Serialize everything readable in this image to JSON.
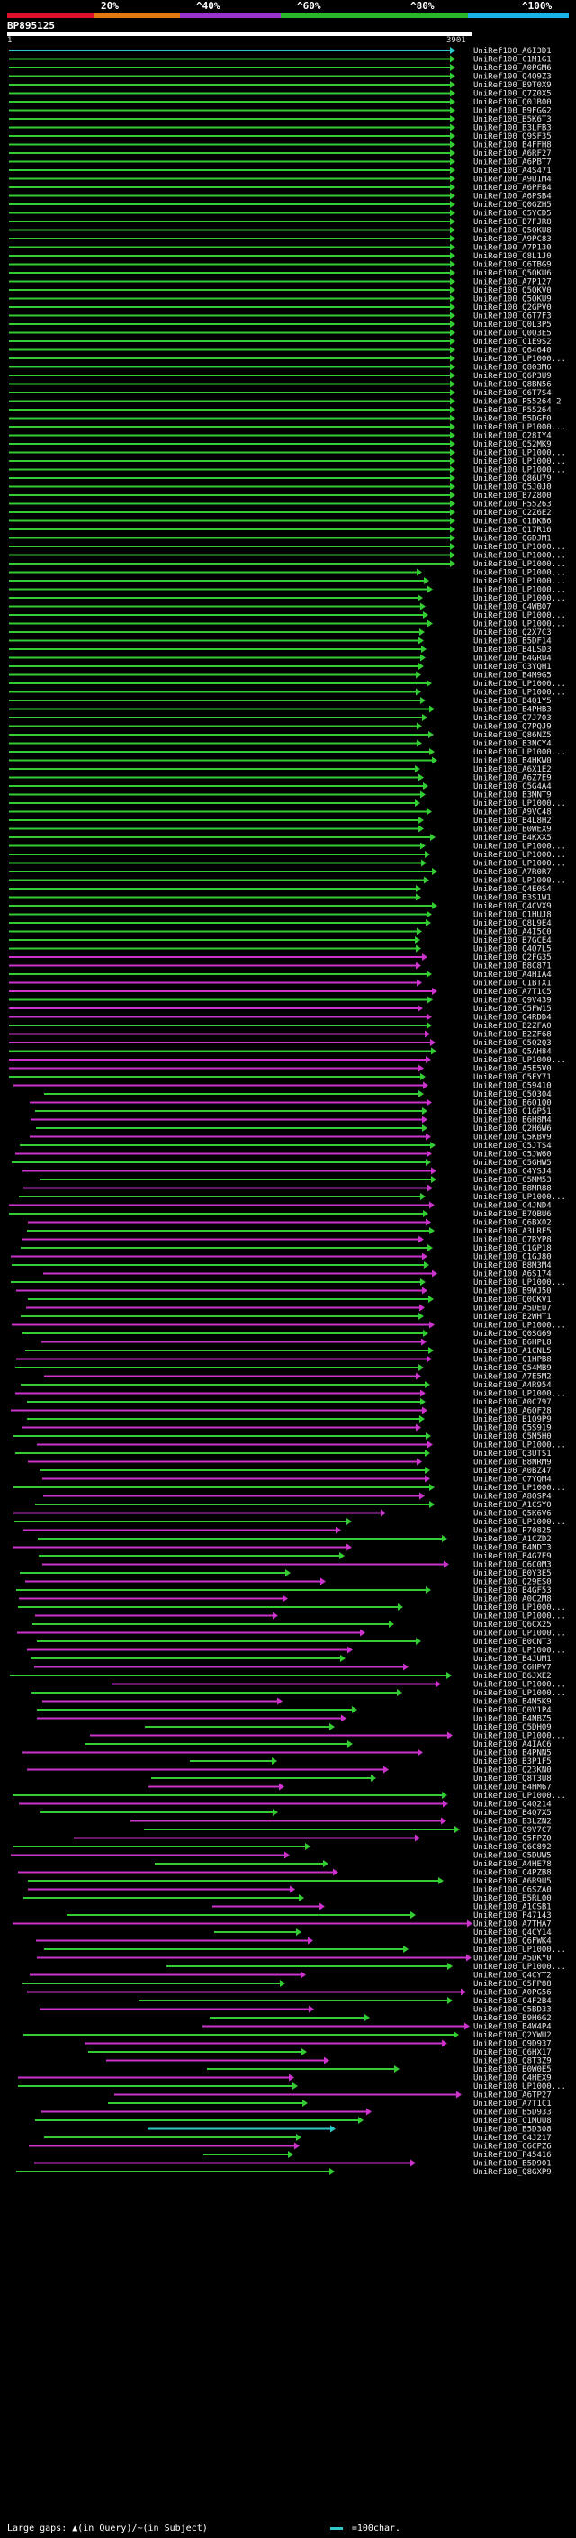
{
  "scale": {
    "labels": [
      "20%",
      "^40%",
      "^60%",
      "^80%",
      "^100%"
    ],
    "colors": [
      "#e0102b",
      "#e07a10",
      "#9933cc",
      "#2bb52b",
      "#19b4e6"
    ]
  },
  "query": {
    "id": "BP895125",
    "start": "1",
    "end": "3901"
  },
  "hits": [
    "UniRef100_A6I3D1",
    "UniRef100_C1M1G1",
    "UniRef100_A0PGM6",
    "UniRef100_Q4Q9Z3",
    "UniRef100_B9T0X9",
    "UniRef100_Q7Z0X5",
    "UniRef100_Q0JB00",
    "UniRef100_B9FGG2",
    "UniRef100_B5K6T3",
    "UniRef100_B3LFB3",
    "UniRef100_Q9SF35",
    "UniRef100_B4FFH8",
    "UniRef100_A6RF27",
    "UniRef100_A6PBT7",
    "UniRef100_A4S471",
    "UniRef100_A9U1M4",
    "UniRef100_A6PFB4",
    "UniRef100_A6PSB4",
    "UniRef100_Q0GZH5",
    "UniRef100_C5YCD5",
    "UniRef100_B7FJR8",
    "UniRef100_Q5QKU8",
    "UniRef100_A9PC83",
    "UniRef100_A7P130",
    "UniRef100_C8L1J0",
    "UniRef100_C6TBG9",
    "UniRef100_Q5QKU6",
    "UniRef100_A7P127",
    "UniRef100_Q5QKV0",
    "UniRef100_Q5QKU9",
    "UniRef100_Q2GPV0",
    "UniRef100_C6T7F3",
    "UniRef100_Q0L3P5",
    "UniRef100_Q0Q3E5",
    "UniRef100_C1E9S2",
    "UniRef100_Q64640",
    "UniRef100_UP1000...",
    "UniRef100_Q803M6",
    "UniRef100_Q6P3U9",
    "UniRef100_Q8BN56",
    "UniRef100_C6T7S4",
    "UniRef100_P55264-2",
    "UniRef100_P55264",
    "UniRef100_B5DGF0",
    "UniRef100_UP1000...",
    "UniRef100_Q28IY4",
    "UniRef100_Q52MK9",
    "UniRef100_UP1000...",
    "UniRef100_UP1000...",
    "UniRef100_UP1000...",
    "UniRef100_Q86U79",
    "UniRef100_Q5J0J0",
    "UniRef100_B7Z800",
    "UniRef100_P55263",
    "UniRef100_C2Z6E2",
    "UniRef100_C1BKB6",
    "UniRef100_Q17R16",
    "UniRef100_Q6DJM1",
    "UniRef100_UP1000...",
    "UniRef100_UP1000...",
    "UniRef100_UP1000...",
    "UniRef100_UP1000...",
    "UniRef100_UP1000...",
    "UniRef100_UP1000...",
    "UniRef100_UP1000...",
    "UniRef100_C4WB07",
    "UniRef100_UP1000...",
    "UniRef100_UP1000...",
    "UniRef100_Q2X7C3",
    "UniRef100_B5DF14",
    "UniRef100_B4LSD3",
    "UniRef100_B4GRU4",
    "UniRef100_C3YQH1",
    "UniRef100_B4M9G5",
    "UniRef100_UP1000...",
    "UniRef100_UP1000...",
    "UniRef100_B4Q1Y5",
    "UniRef100_B4PHB3",
    "UniRef100_Q7J703",
    "UniRef100_Q7PQJ9",
    "UniRef100_Q86NZ5",
    "UniRef100_B3NCY4",
    "UniRef100_UP1000...",
    "UniRef100_B4HKW0",
    "UniRef100_A6X1E2",
    "UniRef100_A6Z7E9",
    "UniRef100_C5G4A4",
    "UniRef100_B3MNT9",
    "UniRef100_UP1000...",
    "UniRef100_A9VC48",
    "UniRef100_B4L8H2",
    "UniRef100_B0WEX9",
    "UniRef100_B4KXX5",
    "UniRef100_UP1000...",
    "UniRef100_UP1000...",
    "UniRef100_UP1000...",
    "UniRef100_A7R0R7",
    "UniRef100_UP1000...",
    "UniRef100_Q4E0S4",
    "UniRef100_B3S1W1",
    "UniRef100_Q4CVX9",
    "UniRef100_Q1HUJ8",
    "UniRef100_Q8L9E4",
    "UniRef100_A4I5C0",
    "UniRef100_B7GCE4",
    "UniRef100_Q4Q7L5",
    "UniRef100_Q2FG35",
    "UniRef100_B8C871",
    "UniRef100_A4HIA4",
    "UniRef100_C1BTX1",
    "UniRef100_A7T1C5",
    "UniRef100_Q9V439",
    "UniRef100_C5FW15",
    "UniRef100_Q4RDD4",
    "UniRef100_B2ZFA0",
    "UniRef100_B2ZF68",
    "UniRef100_C5Q2Q3",
    "UniRef100_Q5AH84",
    "UniRef100_UP1000...",
    "UniRef100_A5E5V0",
    "UniRef100_C5FY71",
    "UniRef100_Q59410",
    "UniRef100_C5Q304",
    "UniRef100_B6Q1Q0",
    "UniRef100_C1GP51",
    "UniRef100_B6H8M4",
    "UniRef100_Q2H6W6",
    "UniRef100_Q5KBV9",
    "UniRef100_C5JTS4",
    "UniRef100_C5JW60",
    "UniRef100_C5GHW5",
    "UniRef100_C4YSJ4",
    "UniRef100_C5MM53",
    "UniRef100_B8MR88",
    "UniRef100_UP1000...",
    "UniRef100_C4JND4",
    "UniRef100_B7QBU6",
    "UniRef100_Q6BX02",
    "UniRef100_A3LRF5",
    "UniRef100_Q7RYP8",
    "UniRef100_C1GP18",
    "UniRef100_C1GJ80",
    "UniRef100_B8M3M4",
    "UniRef100_A6S174",
    "UniRef100_UP1000...",
    "UniRef100_B9WJ50",
    "UniRef100_Q0CKV1",
    "UniRef100_A5DEU7",
    "UniRef100_B2WHT1",
    "UniRef100_UP1000...",
    "UniRef100_Q0SG69",
    "UniRef100_B6HPL8",
    "UniRef100_A1CNL5",
    "UniRef100_Q1HPB8",
    "UniRef100_Q54MB9",
    "UniRef100_A7E5M2",
    "UniRef100_A4R954",
    "UniRef100_UP1000...",
    "UniRef100_A0C797",
    "UniRef100_A6QF28",
    "UniRef100_B1Q9P9",
    "UniRef100_Q5S919",
    "UniRef100_C5M5H0",
    "UniRef100_UP1000...",
    "UniRef100_Q3UTS1",
    "UniRef100_B8NRM9",
    "UniRef100_A0BZ47",
    "UniRef100_C7YQM4",
    "UniRef100_UP1000...",
    "UniRef100_A8QSP4",
    "UniRef100_A1CSY0",
    "UniRef100_Q5K6V6",
    "UniRef100_UP1000...",
    "UniRef100_P70825",
    "UniRef100_A1CZD2",
    "UniRef100_B4NDT3",
    "UniRef100_B4G7E9",
    "UniRef100_Q6C0M3",
    "UniRef100_B0Y3E5",
    "UniRef100_Q29ES0",
    "UniRef100_B4GF53",
    "UniRef100_A0C2M8",
    "UniRef100_UP1000...",
    "UniRef100_UP1000...",
    "UniRef100_Q6CX25",
    "UniRef100_UP1000...",
    "UniRef100_B0CNT3",
    "UniRef100_UP1000...",
    "UniRef100_B4JUM1",
    "UniRef100_C6HPV7",
    "UniRef100_B6JXE2",
    "UniRef100_UP1000...",
    "UniRef100_UP1000...",
    "UniRef100_B4M5K9",
    "UniRef100_Q0V1P4",
    "UniRef100_B4NBZ5",
    "UniRef100_C5DH09",
    "UniRef100_UP1000...",
    "UniRef100_A4IAC6",
    "UniRef100_B4PNN5",
    "UniRef100_B3P1F5",
    "UniRef100_Q23KN0",
    "UniRef100_Q8T3U8",
    "UniRef100_B4HM67",
    "UniRef100_UP1000...",
    "UniRef100_Q4Q214",
    "UniRef100_B4Q7X5",
    "UniRef100_B3LZN2",
    "UniRef100_Q9V7C7",
    "UniRef100_Q5FPZ0",
    "UniRef100_Q6C892",
    "UniRef100_C5DUW5",
    "UniRef100_A4HE78",
    "UniRef100_C4PZB8",
    "UniRef100_A6R9U5",
    "UniRef100_C6SZA0",
    "UniRef100_B5RL00",
    "UniRef100_A1CSB1",
    "UniRef100_P47143",
    "UniRef100_A7THA7",
    "UniRef100_Q4CY14",
    "UniRef100_Q6FWK4",
    "UniRef100_UP1000...",
    "UniRef100_A5DKY0",
    "UniRef100_UP1000...",
    "UniRef100_Q4CYT2",
    "UniRef100_C5FP88",
    "UniRef100_A0PG56",
    "UniRef100_C4F2B4",
    "UniRef100_C5BD33",
    "UniRef100_B9H6G2",
    "UniRef100_B4W4P4",
    "UniRef100_Q2YWU2",
    "UniRef100_Q9D937",
    "UniRef100_C6HX17",
    "UniRef100_Q8T3Z9",
    "UniRef100_B0W0E5",
    "UniRef100_Q4HEX9",
    "UniRef100_UP1000...",
    "UniRef100_A6TP27",
    "UniRef100_A7T1C1",
    "UniRef100_B5D933",
    "UniRef100_C1MUU8",
    "UniRef100_B5D308",
    "UniRef100_C4J217",
    "UniRef100_C6CPZ6",
    "UniRef100_P45416",
    "UniRef100_B5D901",
    "UniRef100_Q8GXP9"
  ],
  "legend": {
    "large_gaps": "Large gaps: ▲(in Query)/~(in Subject)",
    "scale_label": "=100char."
  }
}
